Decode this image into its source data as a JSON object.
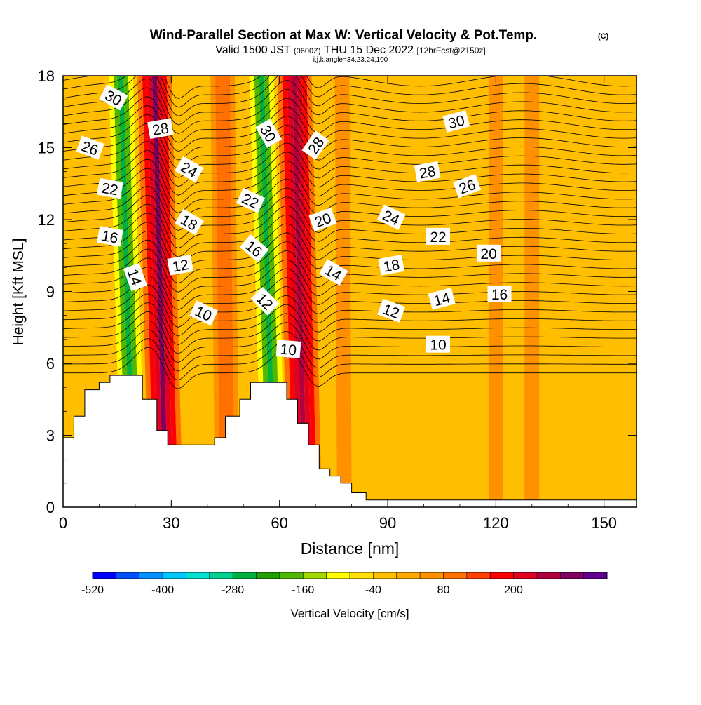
{
  "chart_data": {
    "type": "heatmap",
    "title": "Wind-Parallel Section at Max W: Vertical Velocity & Pot.Temp.",
    "title_mark": "(C)",
    "subtitle_parts": [
      "Valid 1500 JST",
      "(0600Z)",
      "THU 15 Dec 2022",
      "[12hrFcst@2150z]"
    ],
    "subtitle2": "i,j,k,angle=34,23,24,100",
    "xlabel": "Distance [nm]",
    "ylabel": "Height [Kft MSL]",
    "xlim": [
      0,
      159
    ],
    "ylim": [
      0,
      18
    ],
    "x_ticks": [
      "0",
      "30",
      "60",
      "90",
      "120",
      "150"
    ],
    "y_ticks": [
      "0",
      "3",
      "6",
      "9",
      "12",
      "15",
      "18"
    ],
    "colorbar": {
      "label": "Vertical Velocity [cm/s]",
      "tick_labels": [
        "-520",
        "-400",
        "-280",
        "-160",
        "-40",
        "80",
        "200"
      ],
      "colors": [
        "#0000ff",
        "#0050ff",
        "#0090ff",
        "#00c8ff",
        "#00e0d0",
        "#00d090",
        "#00b040",
        "#20a000",
        "#50b800",
        "#a0d800",
        "#ffff00",
        "#ffe000",
        "#ffc000",
        "#ffa800",
        "#ff9000",
        "#ff7000",
        "#ff4000",
        "#ff0000",
        "#e00020",
        "#b00040",
        "#800060",
        "#600090"
      ]
    },
    "terrain": [
      [
        0,
        2.9
      ],
      [
        3,
        2.9
      ],
      [
        3,
        3.8
      ],
      [
        6,
        3.8
      ],
      [
        6,
        4.9
      ],
      [
        10,
        4.9
      ],
      [
        10,
        5.2
      ],
      [
        13,
        5.2
      ],
      [
        13,
        5.5
      ],
      [
        22,
        5.5
      ],
      [
        22,
        4.5
      ],
      [
        26,
        4.5
      ],
      [
        26,
        3.2
      ],
      [
        29,
        3.2
      ],
      [
        29,
        2.6
      ],
      [
        42,
        2.6
      ],
      [
        42,
        2.9
      ],
      [
        45,
        2.9
      ],
      [
        45,
        3.8
      ],
      [
        49,
        3.8
      ],
      [
        49,
        4.5
      ],
      [
        52,
        4.5
      ],
      [
        52,
        5.2
      ],
      [
        62,
        5.2
      ],
      [
        62,
        4.5
      ],
      [
        65,
        4.5
      ],
      [
        65,
        3.5
      ],
      [
        68,
        3.5
      ],
      [
        68,
        2.6
      ],
      [
        71,
        2.6
      ],
      [
        71,
        1.6
      ],
      [
        74,
        1.6
      ],
      [
        74,
        1.3
      ],
      [
        77,
        1.3
      ],
      [
        77,
        1.0
      ],
      [
        80,
        1.0
      ],
      [
        80,
        0.6
      ],
      [
        84,
        0.6
      ],
      [
        84,
        0.3
      ],
      [
        159,
        0.3
      ]
    ],
    "w_bands": [
      {
        "x": 19.5,
        "tilt": 0.55,
        "values": [
          -60,
          -120,
          -200,
          -260,
          -200,
          -120,
          -60
        ]
      },
      {
        "x": 28.5,
        "tilt": 0.5,
        "values": [
          80,
          140,
          200,
          260,
          200,
          140,
          80
        ]
      },
      {
        "x": 58.5,
        "tilt": 0.55,
        "values": [
          -60,
          -120,
          -200,
          -260,
          -200,
          -120,
          -60
        ]
      },
      {
        "x": 67.0,
        "tilt": 0.45,
        "values": [
          80,
          140,
          200,
          240,
          200,
          140,
          80
        ]
      },
      {
        "x": 45.5,
        "tilt": 0.2,
        "values": [
          40,
          60,
          80,
          60,
          40
        ]
      },
      {
        "x": 78.0,
        "tilt": 0.1,
        "values": [
          20,
          40,
          20
        ]
      },
      {
        "x": 120.0,
        "tilt": 0.0,
        "values": [
          20,
          40,
          20
        ]
      },
      {
        "x": 130.0,
        "tilt": 0.0,
        "values": [
          20,
          40,
          20
        ]
      }
    ],
    "theta_levels": [
      10,
      12,
      14,
      16,
      18,
      20,
      22,
      24,
      26,
      28,
      30
    ],
    "theta_labels": [
      {
        "text": "30",
        "x": 14,
        "y": 17.1,
        "angle": 28
      },
      {
        "text": "26",
        "x": 7.5,
        "y": 15.0,
        "angle": 20
      },
      {
        "text": "22",
        "x": 13,
        "y": 13.3,
        "angle": 10
      },
      {
        "text": "16",
        "x": 13,
        "y": 11.3,
        "angle": 10
      },
      {
        "text": "14",
        "x": 20,
        "y": 9.6,
        "angle": 70
      },
      {
        "text": "28",
        "x": 27,
        "y": 15.8,
        "angle": -10
      },
      {
        "text": "24",
        "x": 35,
        "y": 14.1,
        "angle": 30
      },
      {
        "text": "18",
        "x": 35,
        "y": 11.9,
        "angle": 30
      },
      {
        "text": "12",
        "x": 32.5,
        "y": 10.1,
        "angle": -10
      },
      {
        "text": "10",
        "x": 39,
        "y": 8.1,
        "angle": 25
      },
      {
        "text": "30",
        "x": 57,
        "y": 15.6,
        "angle": 60
      },
      {
        "text": "22",
        "x": 52,
        "y": 12.8,
        "angle": 25
      },
      {
        "text": "16",
        "x": 53,
        "y": 10.8,
        "angle": 40
      },
      {
        "text": "12",
        "x": 56,
        "y": 8.6,
        "angle": 45
      },
      {
        "text": "10",
        "x": 62.5,
        "y": 6.6,
        "angle": 5
      },
      {
        "text": "28",
        "x": 70,
        "y": 15.1,
        "angle": -55
      },
      {
        "text": "20",
        "x": 72,
        "y": 12.0,
        "angle": -20
      },
      {
        "text": "14",
        "x": 75,
        "y": 9.8,
        "angle": 30
      },
      {
        "text": "24",
        "x": 91,
        "y": 12.1,
        "angle": 25
      },
      {
        "text": "18",
        "x": 91,
        "y": 10.1,
        "angle": -10
      },
      {
        "text": "12",
        "x": 91,
        "y": 8.2,
        "angle": 20
      },
      {
        "text": "28",
        "x": 101,
        "y": 14.0,
        "angle": -10
      },
      {
        "text": "22",
        "x": 104,
        "y": 11.3,
        "angle": 0
      },
      {
        "text": "14",
        "x": 105,
        "y": 8.7,
        "angle": -15
      },
      {
        "text": "10",
        "x": 104,
        "y": 6.8,
        "angle": 0
      },
      {
        "text": "30",
        "x": 109,
        "y": 16.1,
        "angle": -15
      },
      {
        "text": "26",
        "x": 112,
        "y": 13.4,
        "angle": -20
      },
      {
        "text": "20",
        "x": 118,
        "y": 10.6,
        "angle": 0
      },
      {
        "text": "16",
        "x": 121,
        "y": 8.9,
        "angle": 0
      }
    ]
  }
}
